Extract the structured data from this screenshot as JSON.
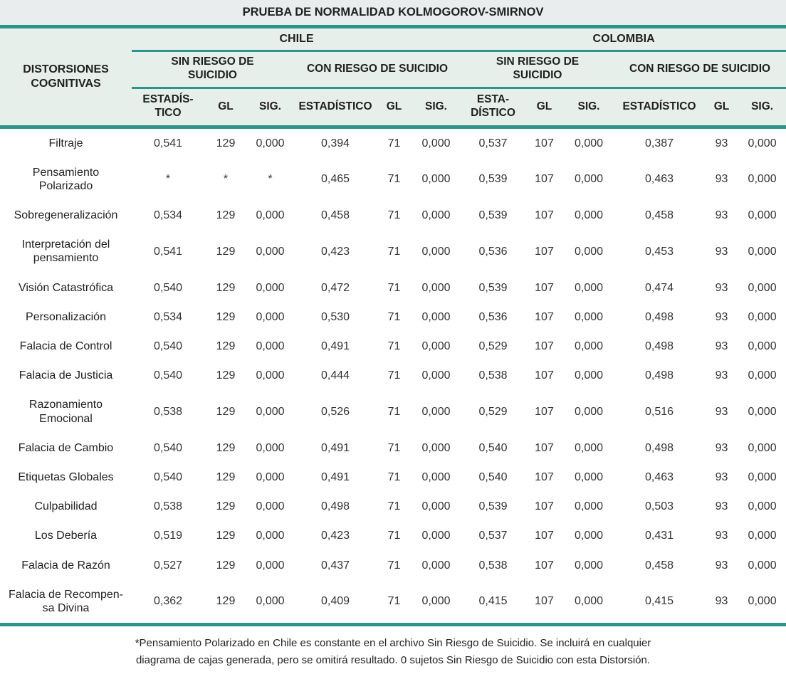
{
  "colors": {
    "accent_teal": "#2D948A",
    "header_bg": "#E6EFE9",
    "title_bg": "#EAEDEE"
  },
  "table": {
    "title": "PRUEBA DE NORMALIDAD KOLMOGOROV-SMIRNOV",
    "row_header": "DISTORSIONES\nCOGNITIVAS",
    "countries": [
      "CHILE",
      "COLOMBIA"
    ],
    "groups": [
      "SIN RIESGO DE\nSUICIDIO",
      "CON RIESGO DE SUICIDIO",
      "SIN RIESGO DE\nSUICIDIO",
      "CON RIESGO DE SUICIDIO"
    ],
    "subheaders": [
      "ESTADÍS-\nTICO",
      "GL",
      "SIG.",
      "ESTADÍSTICO",
      "GL",
      "SIG.",
      "ESTA-\nDÍSTICO",
      "GL",
      "SIG.",
      "ESTADÍSTICO",
      "GL",
      "SIG."
    ],
    "rows": [
      {
        "label": "Filtraje",
        "values": [
          "0,541",
          "129",
          "0,000",
          "0,394",
          "71",
          "0,000",
          "0,537",
          "107",
          "0,000",
          "0,387",
          "93",
          "0,000"
        ]
      },
      {
        "label": "Pensamiento\nPolarizado",
        "values": [
          "*",
          "*",
          "*",
          "0,465",
          "71",
          "0,000",
          "0,539",
          "107",
          "0,000",
          "0,463",
          "93",
          "0,000"
        ]
      },
      {
        "label": "Sobregeneralización",
        "values": [
          "0,534",
          "129",
          "0,000",
          "0,458",
          "71",
          "0,000",
          "0,539",
          "107",
          "0,000",
          "0,458",
          "93",
          "0,000"
        ]
      },
      {
        "label": "Interpretación del\npensamiento",
        "values": [
          "0,541",
          "129",
          "0,000",
          "0,423",
          "71",
          "0,000",
          "0,536",
          "107",
          "0,000",
          "0,453",
          "93",
          "0,000"
        ]
      },
      {
        "label": "Visión Catastrófica",
        "values": [
          "0,540",
          "129",
          "0,000",
          "0,472",
          "71",
          "0,000",
          "0,539",
          "107",
          "0,000",
          "0,474",
          "93",
          "0,000"
        ]
      },
      {
        "label": "Personalización",
        "values": [
          "0,534",
          "129",
          "0,000",
          "0,530",
          "71",
          "0,000",
          "0,536",
          "107",
          "0,000",
          "0,498",
          "93",
          "0,000"
        ]
      },
      {
        "label": "Falacia de Control",
        "values": [
          "0,540",
          "129",
          "0,000",
          "0,491",
          "71",
          "0,000",
          "0,529",
          "107",
          "0,000",
          "0,498",
          "93",
          "0,000"
        ]
      },
      {
        "label": "Falacia de Justicia",
        "values": [
          "0,540",
          "129",
          "0,000",
          "0,444",
          "71",
          "0,000",
          "0,538",
          "107",
          "0,000",
          "0,498",
          "93",
          "0,000"
        ]
      },
      {
        "label": "Razonamiento\nEmocional",
        "values": [
          "0,538",
          "129",
          "0,000",
          "0,526",
          "71",
          "0,000",
          "0,529",
          "107",
          "0,000",
          "0,516",
          "93",
          "0,000"
        ]
      },
      {
        "label": "Falacia de Cambio",
        "values": [
          "0,540",
          "129",
          "0,000",
          "0,491",
          "71",
          "0,000",
          "0,540",
          "107",
          "0,000",
          "0,498",
          "93",
          "0,000"
        ]
      },
      {
        "label": "Etiquetas Globales",
        "values": [
          "0,540",
          "129",
          "0,000",
          "0,491",
          "71",
          "0,000",
          "0,540",
          "107",
          "0,000",
          "0,463",
          "93",
          "0,000"
        ]
      },
      {
        "label": "Culpabilidad",
        "values": [
          "0,538",
          "129",
          "0,000",
          "0,498",
          "71",
          "0,000",
          "0,539",
          "107",
          "0,000",
          "0,503",
          "93",
          "0,000"
        ]
      },
      {
        "label": "Los Debería",
        "values": [
          "0,519",
          "129",
          "0,000",
          "0,423",
          "71",
          "0,000",
          "0,537",
          "107",
          "0,000",
          "0,431",
          "93",
          "0,000"
        ]
      },
      {
        "label": "Falacia de Razón",
        "values": [
          "0,527",
          "129",
          "0,000",
          "0,437",
          "71",
          "0,000",
          "0,538",
          "107",
          "0,000",
          "0,458",
          "93",
          "0,000"
        ]
      },
      {
        "label": "Falacia de Recompen-\nsa Divina",
        "values": [
          "0,362",
          "129",
          "0,000",
          "0,409",
          "71",
          "0,000",
          "0,415",
          "107",
          "0,000",
          "0,415",
          "93",
          "0,000"
        ]
      }
    ]
  },
  "footnote": "*Pensamiento Polarizado en Chile es constante en el archivo Sin Riesgo de Suicidio. Se incluirá en cualquier\ndiagrama de cajas generada, pero se omitirá resultado. 0 sujetos Sin Riesgo de Suicidio con esta Distorsión."
}
